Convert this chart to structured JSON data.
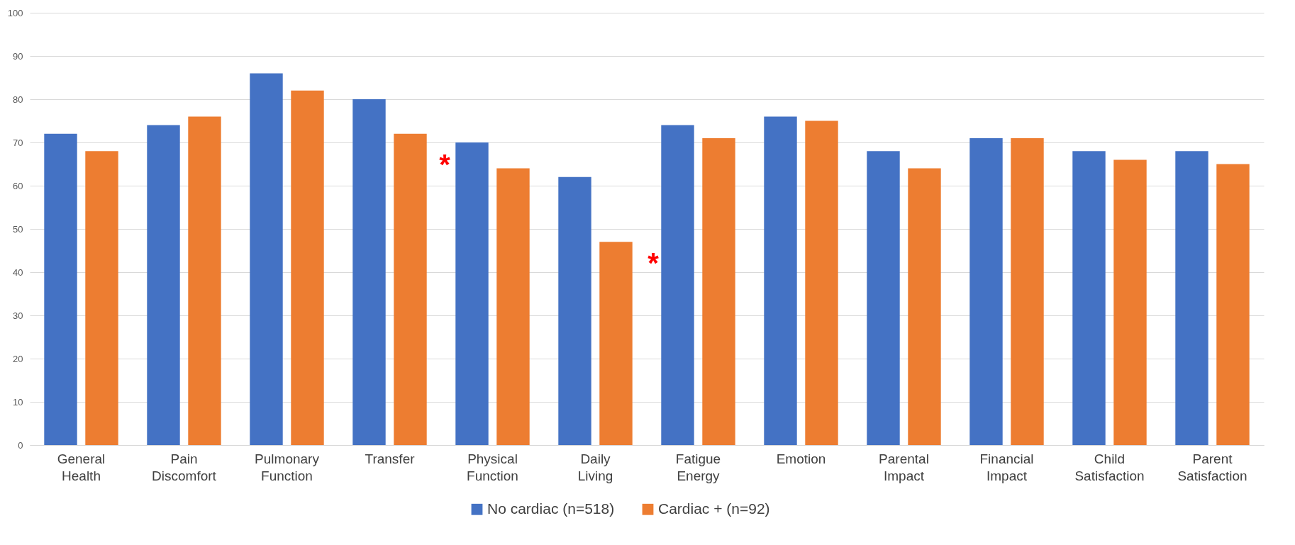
{
  "chart_data": {
    "type": "bar",
    "categories": [
      "General Health",
      "Pain Discomfort",
      "Pulmonary Function",
      "Transfer",
      "Physical Function",
      "Daily Living",
      "Fatigue Energy",
      "Emotion",
      "Parental Impact",
      "Financial Impact",
      "Child Satisfaction",
      "Parent Satisfaction"
    ],
    "series": [
      {
        "name": "No cardiac  (n=518)",
        "color": "#4472c4",
        "values": [
          72,
          74,
          86,
          80,
          70,
          62,
          74,
          76,
          68,
          71,
          68,
          68
        ]
      },
      {
        "name": "Cardiac + (n=92)",
        "color": "#ed7d31",
        "values": [
          68,
          76,
          82,
          72,
          64,
          47,
          71,
          75,
          64,
          71,
          66,
          65
        ]
      }
    ],
    "annotations": [
      "*",
      "*"
    ],
    "ylim": [
      0,
      100
    ],
    "yticks": [
      0,
      10,
      20,
      30,
      40,
      50,
      60,
      70,
      80,
      90,
      100
    ],
    "grid": "y",
    "legend": "bottom"
  }
}
